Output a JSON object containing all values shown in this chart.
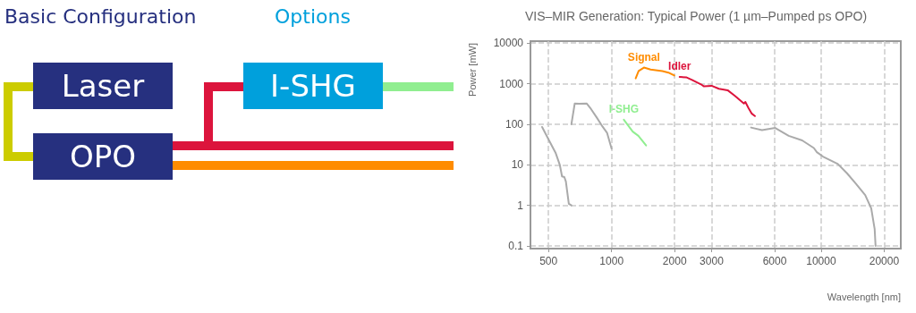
{
  "chart_data": [
    {
      "type": "other",
      "title": "Basic Configuration",
      "subtitle": "Options",
      "annotations": [
        "Laser",
        "OPO",
        "I-SHG"
      ]
    },
    {
      "type": "line",
      "title": "VIS–MIR Generation: Typical Power (1 µm–Pumped ps OPO)",
      "xlabel": "Wavelength [nm]",
      "ylabel": "Power [mW]",
      "log": "xy",
      "grid": true,
      "marker": "none",
      "line_style": "solid",
      "xlim": [
        410,
        24000
      ],
      "xticks": [
        500,
        1000,
        2000,
        3000,
        6000,
        10000,
        20000
      ],
      "ylim": [
        0.086,
        11200
      ],
      "yticks": [
        0.1,
        1,
        10,
        100,
        1000,
        10000
      ],
      "series": [
        {
          "color": "#aaaaaa",
          "x": [
            466,
            499,
            540,
            566,
            580,
            595,
            605,
            625,
            643
          ],
          "values": [
            86,
            43,
            20,
            10,
            5.2,
            5,
            3.9,
            1.1,
            1
          ]
        },
        {
          "color": "#aaaaaa",
          "x": [
            643,
            667,
            700,
            760,
            798,
            852,
            906,
            952,
            1000
          ],
          "values": [
            100,
            325,
            320,
            325,
            237,
            143,
            87,
            61,
            25
          ]
        },
        {
          "name": "I-SHG",
          "color": "#90ee90",
          "x": [
            1144,
            1261,
            1342,
            1461
          ],
          "values": [
            130,
            66,
            52,
            30
          ]
        },
        {
          "name": "Signal",
          "color": "#ff8c00",
          "x": [
            1303,
            1346,
            1427,
            1535,
            1748,
            1867,
            1992
          ],
          "values": [
            1351,
            2050,
            2500,
            2230,
            2050,
            1880,
            1594
          ]
        },
        {
          "name": "Idler",
          "color": "#dc143c",
          "x": [
            2112,
            2270,
            2420,
            2670,
            2760,
            3000,
            3250,
            3580,
            3880,
            4280,
            4350,
            4500,
            4670,
            4830
          ],
          "values": [
            1464,
            1440,
            1240,
            965,
            860,
            890,
            750,
            690,
            500,
            325,
            354,
            253,
            182,
            159
          ]
        },
        {
          "color": "#aaaaaa",
          "x": [
            4630,
            5220,
            6040,
            7000,
            8120,
            9230,
            9540,
            10200,
            12020,
            13290,
            14680,
            16230,
            17340,
            18010,
            18190
          ],
          "values": [
            83,
            72,
            81,
            52,
            40,
            26,
            20.6,
            16,
            10.5,
            6.2,
            3.4,
            1.8,
            0.85,
            0.26,
            0.1
          ]
        }
      ]
    }
  ]
}
